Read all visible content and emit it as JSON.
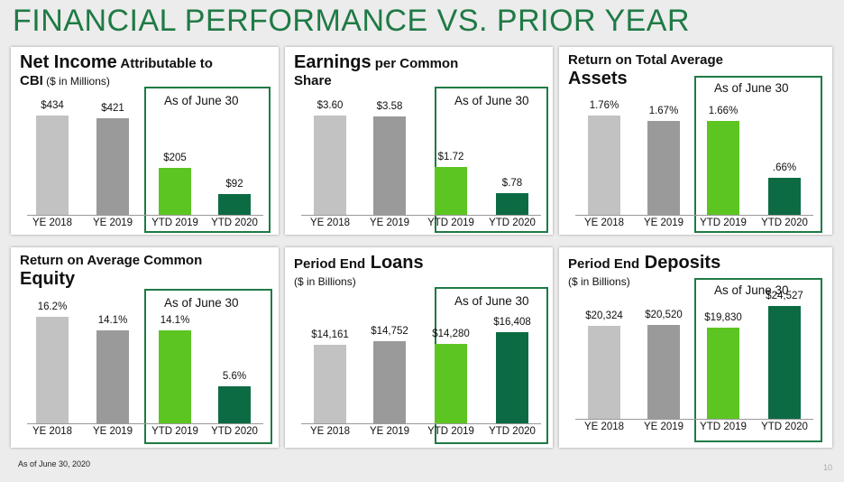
{
  "title": "FINANCIAL PERFORMANCE VS. PRIOR YEAR",
  "footnote": "As of June 30, 2020",
  "page_number": "10",
  "colors": {
    "title": "#1f7a45",
    "box_border": "#1f7a45",
    "bars": [
      "#c2c2c2",
      "#9a9a9a",
      "#5cc521",
      "#0d6b44"
    ]
  },
  "chart_data": [
    {
      "type": "bar",
      "title_parts": [
        "Net Income",
        " Attributable to",
        "CBI",
        " ($ in Millions)"
      ],
      "box_label": "As of June 30",
      "categories": [
        "YE 2018",
        "YE 2019",
        "YTD 2019",
        "YTD 2020"
      ],
      "values": [
        434,
        421,
        205,
        92
      ],
      "value_labels": [
        "$434",
        "$421",
        "$205",
        "$92"
      ],
      "ylim": [
        0,
        434
      ]
    },
    {
      "type": "bar",
      "title_parts": [
        "Earnings",
        " per Common",
        "Share",
        ""
      ],
      "box_label": "As of June 30",
      "categories": [
        "YE 2018",
        "YE 2019",
        "YTD 2019",
        "YTD 2020"
      ],
      "values": [
        3.6,
        3.58,
        1.72,
        0.78
      ],
      "value_labels": [
        "$3.60",
        "$3.58",
        "$1.72",
        "$.78"
      ],
      "ylim": [
        0,
        3.6
      ]
    },
    {
      "type": "bar",
      "title_parts": [
        "Return on Total Average",
        "",
        "Assets",
        ""
      ],
      "box_label": "As of June 30",
      "categories": [
        "YE 2018",
        "YE 2019",
        "YTD 2019",
        "YTD 2020"
      ],
      "values": [
        1.76,
        1.67,
        1.66,
        0.66
      ],
      "value_labels": [
        "1.76%",
        "1.67%",
        "1.66%",
        ".66%"
      ],
      "ylim": [
        0,
        1.76
      ]
    },
    {
      "type": "bar",
      "title_parts": [
        "Return on Average Common",
        "",
        "Equity",
        ""
      ],
      "box_label": "As of June 30",
      "categories": [
        "YE 2018",
        "YE 2019",
        "YTD 2019",
        "YTD 2020"
      ],
      "values": [
        16.2,
        14.1,
        14.1,
        5.6
      ],
      "value_labels": [
        "16.2%",
        "14.1%",
        "14.1%",
        "5.6%"
      ],
      "ylim": [
        0,
        16.2
      ]
    },
    {
      "type": "bar",
      "title_parts": [
        "Period End",
        " Loans",
        "($ in Billions)",
        ""
      ],
      "box_label": "As of June 30",
      "categories": [
        "YE 2018",
        "YE 2019",
        "YTD 2019",
        "YTD 2020"
      ],
      "values": [
        14161,
        14752,
        14280,
        16408
      ],
      "value_labels": [
        "$14,161",
        "$14,752",
        "$14,280",
        "$16,408"
      ],
      "ylim": [
        0,
        28000
      ]
    },
    {
      "type": "bar",
      "title_parts": [
        "Period End",
        " Deposits",
        "($ in Billions)",
        ""
      ],
      "box_label": "As of June 30",
      "categories": [
        "YE 2018",
        "YE 2019",
        "YTD 2019",
        "YTD 2020"
      ],
      "values": [
        20324,
        20520,
        19830,
        24527
      ],
      "value_labels": [
        "$20,324",
        "$20,520",
        "$19,830",
        "$24,527"
      ],
      "ylim": [
        0,
        35000
      ]
    }
  ]
}
